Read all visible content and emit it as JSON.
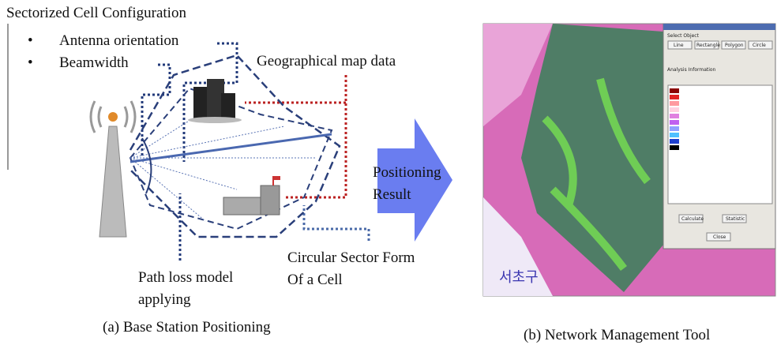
{
  "left_panel": {
    "title": "Sectorized Cell Configuration",
    "bullets": [
      "Antenna orientation",
      "Beamwidth"
    ],
    "map_label": "Geographical map data",
    "arrow_label": [
      "Positioning",
      "Result"
    ],
    "sector_label": [
      "Circular Sector Form",
      "Of a Cell"
    ],
    "pathloss_label": [
      "Path loss model",
      "applying"
    ],
    "caption": "(a) Base Station Positioning"
  },
  "right_panel": {
    "district_label": "서초구",
    "dialog": {
      "section": "Select Object",
      "buttons": [
        "Line",
        "Rectangle",
        "Polygon",
        "Circle"
      ],
      "info": "Analysis Information",
      "actions": [
        "Calculate",
        "Statistic"
      ],
      "close": "Close"
    },
    "caption": "(b) Network Management Tool"
  }
}
